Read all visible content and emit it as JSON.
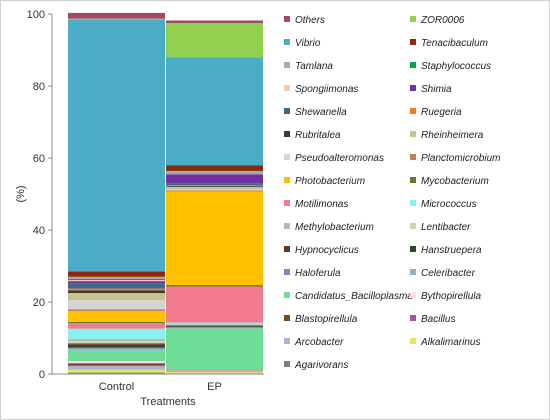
{
  "chart_data": {
    "type": "bar",
    "stacked": true,
    "title": "",
    "xlabel": "Treatments",
    "ylabel": "(%)",
    "ylim": [
      0,
      100
    ],
    "yticks": [
      0,
      20,
      40,
      60,
      80,
      100
    ],
    "categories": [
      "Control",
      "EP"
    ],
    "legend_position": "right",
    "grid": false,
    "series": [
      {
        "name": "Agarivorans",
        "color": "#808080",
        "values": [
          0.4,
          0.2
        ]
      },
      {
        "name": "Alkalimarinus",
        "color": "#e6e65c",
        "values": [
          0.8,
          0.3
        ]
      },
      {
        "name": "Arcobacter",
        "color": "#aab4d8",
        "values": [
          1.0,
          0.3
        ]
      },
      {
        "name": "Bacillus",
        "color": "#a6559b",
        "values": [
          0.3,
          0.1
        ]
      },
      {
        "name": "Blastopirellula",
        "color": "#7a4a1a",
        "values": [
          0.5,
          0.1
        ]
      },
      {
        "name": "Bythopirellula",
        "color": "#ffd9f0",
        "values": [
          0.6,
          0.1
        ]
      },
      {
        "name": "Candidatus_Bacilloplasma",
        "color": "#6ddc96",
        "values": [
          3.0,
          11.5
        ]
      },
      {
        "name": "Celeribacter",
        "color": "#8fb3c5",
        "values": [
          0.4,
          0.2
        ]
      },
      {
        "name": "Haloferula",
        "color": "#7f88c0",
        "values": [
          0.3,
          0.2
        ]
      },
      {
        "name": "Hanstruepera",
        "color": "#2e4a2a",
        "values": [
          0.8,
          0.3
        ]
      },
      {
        "name": "Hypnocyclicus",
        "color": "#5c3a1e",
        "values": [
          0.4,
          0.2
        ]
      },
      {
        "name": "Lentibacter",
        "color": "#c4dda8",
        "values": [
          0.6,
          0.2
        ]
      },
      {
        "name": "Methylobacterium",
        "color": "#b8b8b8",
        "values": [
          0.7,
          0.3
        ]
      },
      {
        "name": "Micrococcus",
        "color": "#88f0f0",
        "values": [
          2.8,
          0.3
        ]
      },
      {
        "name": "Motilimonas",
        "color": "#f07c8e",
        "values": [
          1.5,
          10.0
        ]
      },
      {
        "name": "Mycobacterium",
        "color": "#5d7a2b",
        "values": [
          0.4,
          0.4
        ]
      },
      {
        "name": "Photobacterium",
        "color": "#ffc000",
        "values": [
          3.0,
          26.0
        ]
      },
      {
        "name": "Planctomicrobium",
        "color": "#c08060",
        "values": [
          0.5,
          0.3
        ]
      },
      {
        "name": "Pseudoalteromonas",
        "color": "#d4d4d4",
        "values": [
          2.5,
          0.4
        ]
      },
      {
        "name": "Rheinheimera",
        "color": "#c9c28f",
        "values": [
          2.0,
          0.6
        ]
      },
      {
        "name": "Rubritalea",
        "color": "#3a3a3a",
        "values": [
          0.7,
          0.3
        ]
      },
      {
        "name": "Ruegeria",
        "color": "#f47b20",
        "values": [
          0.5,
          0.2
        ]
      },
      {
        "name": "Shewanella",
        "color": "#3a6b8c",
        "values": [
          1.5,
          0.5
        ]
      },
      {
        "name": "Shimia",
        "color": "#7030a0",
        "values": [
          0.6,
          2.5
        ]
      },
      {
        "name": "Spongiimonas",
        "color": "#f8cbad",
        "values": [
          0.3,
          0.2
        ]
      },
      {
        "name": "Staphylococcus",
        "color": "#00a651",
        "values": [
          0.3,
          0.2
        ]
      },
      {
        "name": "Tamlana",
        "color": "#a9a9a9",
        "values": [
          0.6,
          0.5
        ]
      },
      {
        "name": "Tenacibaculum",
        "color": "#8b2a0e",
        "values": [
          1.5,
          1.6
        ]
      },
      {
        "name": "Vibrio",
        "color": "#4bacc6",
        "values": [
          70.0,
          30.0
        ]
      },
      {
        "name": "ZOR0006",
        "color": "#92d050",
        "values": [
          0.2,
          9.5
        ]
      },
      {
        "name": "Others",
        "color": "#9e4a6a",
        "values": [
          1.6,
          0.7
        ]
      }
    ]
  }
}
